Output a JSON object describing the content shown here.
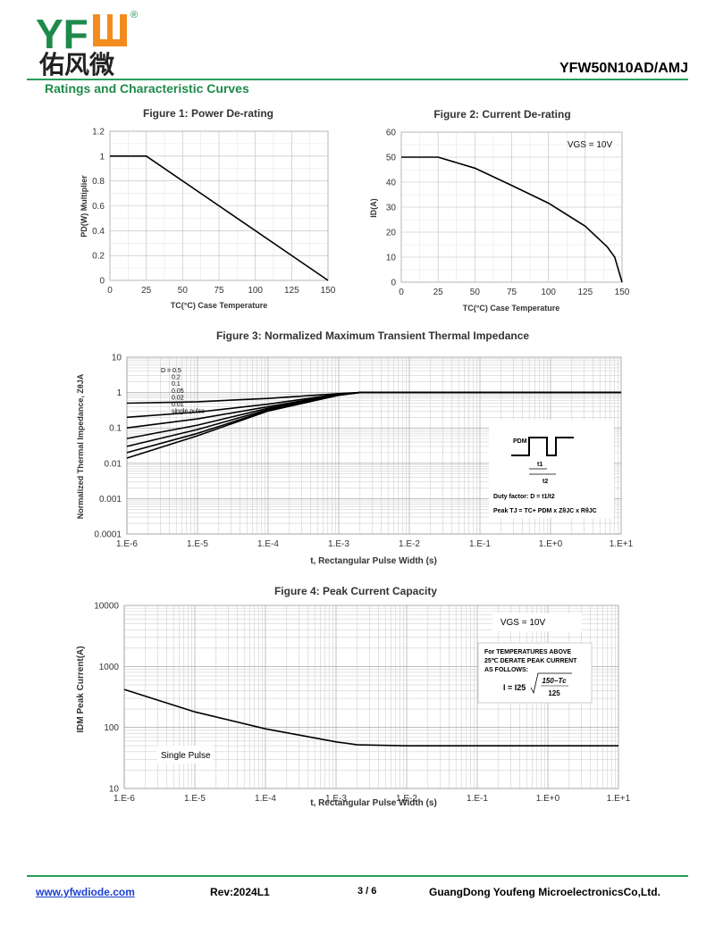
{
  "header": {
    "logo_text": "YFW",
    "logo_cn": "佑风微",
    "registered": "®",
    "part_number": "YFW50N10AD/AMJ",
    "section_title": "Ratings and Characteristic Curves",
    "brand_color": "#1e8a4a",
    "logo_color": "#f28c1e"
  },
  "chart_data": [
    {
      "id": "fig1",
      "type": "line",
      "title": "Figure 1: Power De-rating",
      "xlabel": "TC(°C) Case Temperature",
      "ylabel": "PD(W) Multiplier",
      "xticks": [
        "0",
        "25",
        "50",
        "75",
        "100",
        "125",
        "150"
      ],
      "yticks": [
        "0",
        "0.2",
        "0.4",
        "0.6",
        "0.8",
        "1",
        "1.2"
      ],
      "xlim": [
        0,
        150
      ],
      "ylim": [
        0,
        1.2
      ],
      "grid": true,
      "series": [
        {
          "x": [
            0,
            25,
            150
          ],
          "y": [
            1,
            1,
            0
          ]
        }
      ]
    },
    {
      "id": "fig2",
      "type": "line",
      "title": "Figure 2: Current De-rating",
      "xlabel": "TC(°C) Case Temperature",
      "ylabel": "ID(A)",
      "annotation": "VGS = 10V",
      "xticks": [
        "0",
        "25",
        "50",
        "75",
        "100",
        "125",
        "150"
      ],
      "yticks": [
        "0",
        "10",
        "20",
        "30",
        "40",
        "50",
        "60"
      ],
      "xlim": [
        0,
        150
      ],
      "ylim": [
        0,
        60
      ],
      "grid": true,
      "series": [
        {
          "x": [
            0,
            25,
            50,
            75,
            100,
            125,
            140,
            145,
            150
          ],
          "y": [
            50,
            50,
            45.6,
            38.7,
            31.6,
            22.4,
            14.1,
            10,
            0
          ]
        }
      ]
    },
    {
      "id": "fig3",
      "type": "line",
      "title": "Figure 3: Normalized Maximum Transient Thermal Impedance",
      "xlabel": "t, Rectangular Pulse Width (s)",
      "ylabel": "Normalized Thermal Impedance, ZθJA",
      "xscale": "log",
      "yscale": "log",
      "xticks": [
        "1.E-6",
        "1.E-5",
        "1.E-4",
        "1.E-3",
        "1.E-2",
        "1.E-1",
        "1.E+0",
        "1.E+1"
      ],
      "yticks": [
        "0.0001",
        "0.001",
        "0.01",
        "0.1",
        "1",
        "10"
      ],
      "xlim": [
        1e-06,
        10
      ],
      "ylim": [
        0.0001,
        10
      ],
      "grid": true,
      "legend_title": "D = 0.5",
      "legend": [
        "D = 0.5",
        "0.2",
        "0.1",
        "0.05",
        "0.02",
        "0.01",
        "single pulse"
      ],
      "series": [
        {
          "x": [
            1e-06,
            1e-05,
            0.0001,
            0.001,
            0.002,
            10
          ],
          "y": [
            0.5,
            0.55,
            0.68,
            0.93,
            1,
            1
          ]
        },
        {
          "x": [
            1e-06,
            1e-05,
            0.0001,
            0.001,
            0.002,
            10
          ],
          "y": [
            0.2,
            0.28,
            0.47,
            0.9,
            1,
            1
          ]
        },
        {
          "x": [
            1e-06,
            1e-05,
            0.0001,
            0.001,
            0.002,
            10
          ],
          "y": [
            0.1,
            0.18,
            0.4,
            0.88,
            1,
            1
          ]
        },
        {
          "x": [
            1e-06,
            1e-05,
            0.0001,
            0.001,
            0.002,
            10
          ],
          "y": [
            0.05,
            0.12,
            0.36,
            0.86,
            1,
            1
          ]
        },
        {
          "x": [
            1e-06,
            1e-05,
            0.0001,
            0.001,
            0.002,
            10
          ],
          "y": [
            0.03,
            0.09,
            0.33,
            0.85,
            1,
            1
          ]
        },
        {
          "x": [
            1e-06,
            1e-05,
            0.0001,
            0.001,
            0.002,
            10
          ],
          "y": [
            0.02,
            0.07,
            0.31,
            0.84,
            1,
            1
          ]
        },
        {
          "x": [
            1e-06,
            1e-05,
            0.0001,
            0.001,
            0.002,
            10
          ],
          "y": [
            0.014,
            0.06,
            0.3,
            0.84,
            1,
            1
          ]
        }
      ],
      "inset": {
        "pdm": "PDM",
        "t1": "t1",
        "t2": "t2",
        "duty": "Duty factor: D = t1/t2",
        "peak": "Peak TJ = TC+ PDM x ZθJC x RθJC"
      }
    },
    {
      "id": "fig4",
      "type": "line",
      "title": "Figure 4: Peak Current Capacity",
      "xlabel": "t, Rectangular Pulse Width (s)",
      "ylabel": "IDM Peak Current(A)",
      "xscale": "log",
      "yscale": "log",
      "xticks": [
        "1.E-6",
        "1.E-5",
        "1.E-4",
        "1.E-3",
        "1.E-2",
        "1.E-1",
        "1.E+0",
        "1.E+1"
      ],
      "yticks": [
        "10",
        "100",
        "1000",
        "10000"
      ],
      "xlim": [
        1e-06,
        10
      ],
      "ylim": [
        10,
        10000
      ],
      "grid": true,
      "annotation": "VGS = 10V",
      "series_label": "Single Pulse",
      "note_lines": [
        "For TEMPERATURES ABOVE",
        "25℃ DERATE PEAK CURRENT",
        "AS FOLLOWS:"
      ],
      "formula_left": "I = I25",
      "formula_num": "150−Tc",
      "formula_den": "125",
      "series": [
        {
          "x": [
            1e-06,
            1e-05,
            0.0001,
            0.001,
            0.002,
            0.01,
            10
          ],
          "y": [
            420,
            180,
            95,
            58,
            52,
            50,
            50
          ]
        }
      ]
    }
  ],
  "footer": {
    "url": "www.yfwdiode.com",
    "rev": "Rev:2024L1",
    "page": "3 / 6",
    "company": "GuangDong Youfeng MicroelectronicsCo,Ltd."
  }
}
